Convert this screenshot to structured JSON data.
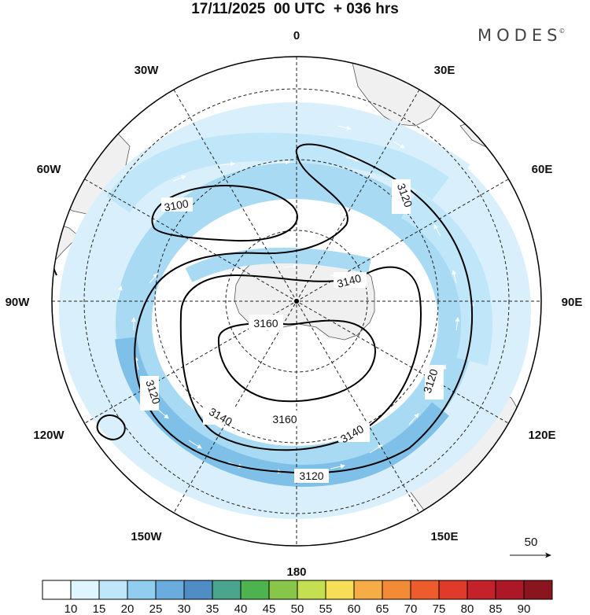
{
  "title": {
    "date": "17/11/2025",
    "run": "00 UTC",
    "lead": "+ 036 hrs"
  },
  "brand": "MODES",
  "brand_mark": "©",
  "longitude_labels": [
    "0",
    "30E",
    "60E",
    "90E",
    "120E",
    "150E",
    "180",
    "150W",
    "120W",
    "90W",
    "60W",
    "30W"
  ],
  "contour_labels": [
    "3100",
    "3120",
    "3120",
    "3140",
    "3160",
    "3120",
    "3140",
    "3160",
    "3140",
    "3120"
  ],
  "vector_reference": {
    "value": "50"
  },
  "colorbar": {
    "ticks": [
      "10",
      "15",
      "20",
      "25",
      "30",
      "35",
      "40",
      "45",
      "50",
      "55",
      "60",
      "65",
      "70",
      "75",
      "80",
      "85",
      "90"
    ],
    "colors": [
      "#ffffff",
      "#e0f6fe",
      "#bfe7f9",
      "#91cdee",
      "#6aacde",
      "#4f8dc4",
      "#4aa58e",
      "#4cb34f",
      "#88c64a",
      "#c4df52",
      "#f6df57",
      "#f6ad47",
      "#f28a36",
      "#ec5c2c",
      "#e03a2b",
      "#c5212b",
      "#ad1826",
      "#8a151e"
    ]
  },
  "colors": {
    "land": "#f0f0f0",
    "wind_light": "#d9f0fc",
    "wind_mid": "#a8daf4",
    "wind_strong": "#7fc0e8",
    "contour": "#000000"
  }
}
